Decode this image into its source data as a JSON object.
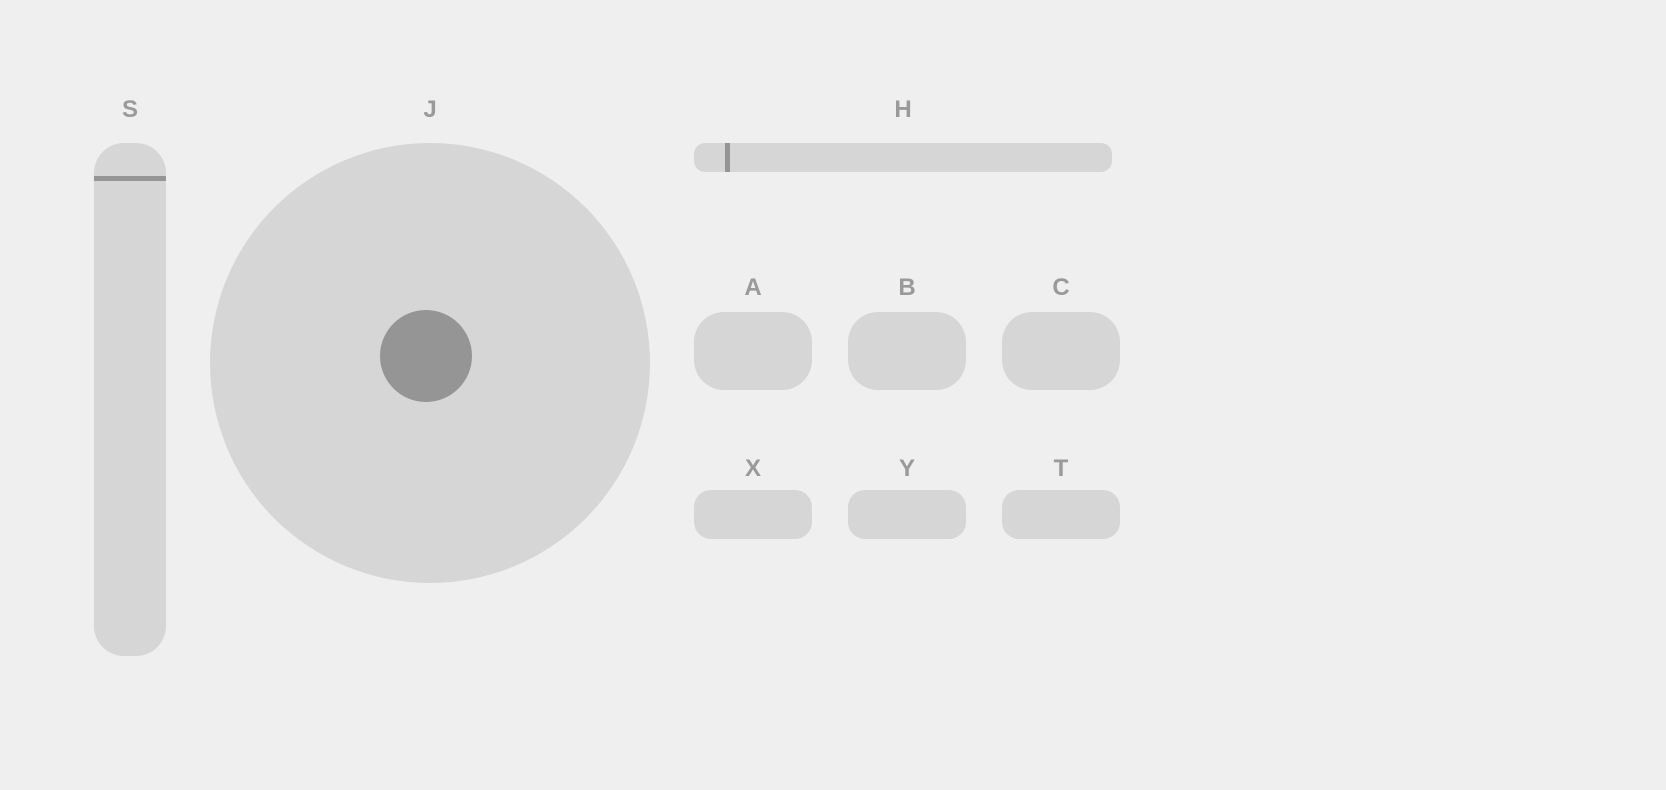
{
  "colors": {
    "background": "#efefef",
    "control": "#d6d6d6",
    "indicator": "#959595",
    "label": "#9a9a9a"
  },
  "vertical_slider": {
    "label": "S",
    "value_from_top": 0.065
  },
  "joystick": {
    "label": "J",
    "x": -0.02,
    "y": -0.03
  },
  "horizontal_slider": {
    "label": "H",
    "value": 0.08
  },
  "buttons_row1": [
    {
      "label": "A"
    },
    {
      "label": "B"
    },
    {
      "label": "C"
    }
  ],
  "buttons_row2": [
    {
      "label": "X"
    },
    {
      "label": "Y"
    },
    {
      "label": "T"
    }
  ]
}
